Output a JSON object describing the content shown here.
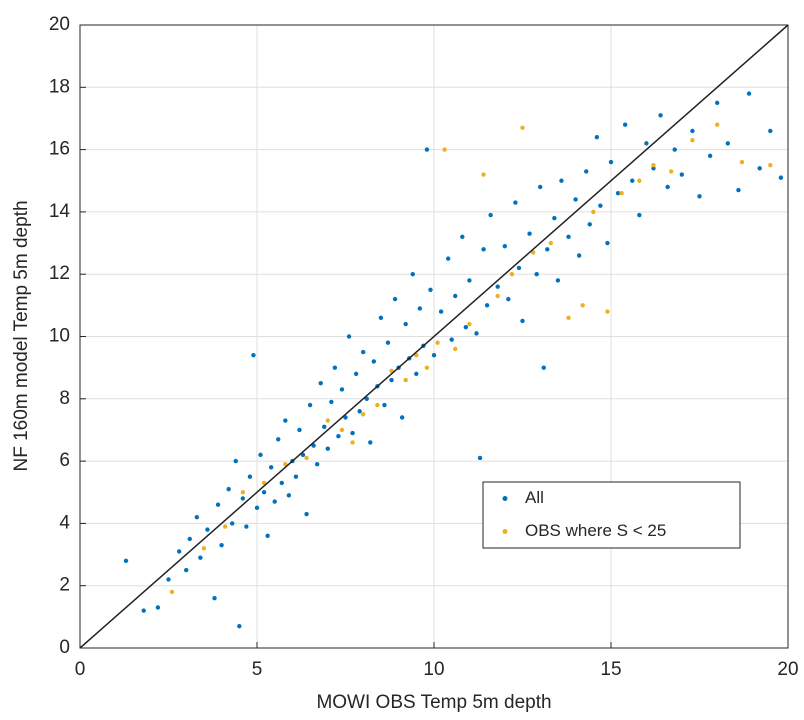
{
  "chart_data": {
    "type": "scatter",
    "xlabel": "MOWI OBS Temp 5m depth",
    "ylabel": "NF 160m model Temp 5m depth",
    "xlim": [
      0,
      20
    ],
    "ylim": [
      0,
      20
    ],
    "xticks": [
      0,
      5,
      10,
      15,
      20
    ],
    "yticks": [
      0,
      2,
      4,
      6,
      8,
      10,
      12,
      14,
      16,
      18,
      20
    ],
    "grid": true,
    "identity_line": true,
    "legend": "lower right",
    "series": [
      {
        "name": "All",
        "color": "#0072bd",
        "x": [
          1.3,
          1.8,
          2.2,
          2.5,
          2.8,
          3.0,
          3.1,
          3.3,
          3.4,
          3.6,
          3.8,
          3.9,
          4.0,
          4.2,
          4.3,
          4.4,
          4.5,
          4.6,
          4.7,
          4.8,
          4.9,
          5.0,
          5.1,
          5.2,
          5.3,
          5.4,
          5.5,
          5.6,
          5.7,
          5.8,
          5.9,
          6.0,
          6.1,
          6.2,
          6.3,
          6.4,
          6.5,
          6.6,
          6.7,
          6.8,
          6.9,
          7.0,
          7.1,
          7.2,
          7.3,
          7.4,
          7.5,
          7.6,
          7.7,
          7.8,
          7.9,
          8.0,
          8.1,
          8.2,
          8.3,
          8.4,
          8.5,
          8.6,
          8.7,
          8.8,
          8.9,
          9.0,
          9.1,
          9.2,
          9.3,
          9.4,
          9.5,
          9.6,
          9.7,
          9.8,
          9.9,
          10.0,
          10.2,
          10.4,
          10.5,
          10.6,
          10.8,
          10.9,
          11.0,
          11.2,
          11.3,
          11.4,
          11.5,
          11.6,
          11.8,
          12.0,
          12.1,
          12.3,
          12.4,
          12.5,
          12.7,
          12.9,
          13.0,
          13.1,
          13.2,
          13.4,
          13.5,
          13.6,
          13.8,
          14.0,
          14.1,
          14.3,
          14.4,
          14.6,
          14.7,
          14.9,
          15.0,
          15.2,
          15.4,
          15.6,
          15.8,
          16.0,
          16.2,
          16.4,
          16.6,
          16.8,
          17.0,
          17.3,
          17.5,
          17.8,
          18.0,
          18.3,
          18.6,
          18.9,
          19.2,
          19.5,
          19.8
        ],
        "y": [
          2.8,
          1.2,
          1.3,
          2.2,
          3.1,
          2.5,
          3.5,
          4.2,
          2.9,
          3.8,
          1.6,
          4.6,
          3.3,
          5.1,
          4.0,
          6.0,
          0.7,
          4.8,
          3.9,
          5.5,
          9.4,
          4.5,
          6.2,
          5.0,
          3.6,
          5.8,
          4.7,
          6.7,
          5.3,
          7.3,
          4.9,
          6.0,
          5.5,
          7.0,
          6.2,
          4.3,
          7.8,
          6.5,
          5.9,
          8.5,
          7.1,
          6.4,
          7.9,
          9.0,
          6.8,
          8.3,
          7.4,
          10.0,
          6.9,
          8.8,
          7.6,
          9.5,
          8.0,
          6.6,
          9.2,
          8.4,
          10.6,
          7.8,
          9.8,
          8.6,
          11.2,
          9.0,
          7.4,
          10.4,
          9.3,
          12.0,
          8.8,
          10.9,
          9.7,
          16.0,
          11.5,
          9.4,
          10.8,
          12.5,
          9.9,
          11.3,
          13.2,
          10.3,
          11.8,
          10.1,
          6.1,
          12.8,
          11.0,
          13.9,
          11.6,
          12.9,
          11.2,
          14.3,
          12.2,
          10.5,
          13.3,
          12.0,
          14.8,
          9.0,
          12.8,
          13.8,
          11.8,
          15.0,
          13.2,
          14.4,
          12.6,
          15.3,
          13.6,
          16.4,
          14.2,
          13.0,
          15.6,
          14.6,
          16.8,
          15.0,
          13.9,
          16.2,
          15.4,
          17.1,
          14.8,
          16.0,
          15.2,
          16.6,
          14.5,
          15.8,
          17.5,
          16.2,
          14.7,
          17.8,
          15.4,
          16.6,
          15.1
        ]
      },
      {
        "name": "OBS where S < 25",
        "color": "#edb120",
        "x": [
          2.6,
          3.5,
          4.1,
          4.6,
          5.2,
          5.8,
          6.4,
          7.0,
          7.4,
          7.7,
          8.0,
          8.4,
          8.8,
          9.2,
          9.5,
          9.8,
          10.1,
          10.3,
          10.6,
          11.0,
          11.4,
          11.8,
          12.2,
          12.5,
          12.8,
          13.3,
          13.8,
          14.2,
          14.5,
          14.9,
          15.3,
          15.8,
          16.2,
          16.7,
          17.3,
          18.0,
          18.7,
          19.5
        ],
        "y": [
          1.8,
          3.2,
          3.9,
          5.0,
          5.3,
          5.9,
          6.1,
          7.3,
          7.0,
          6.6,
          7.5,
          7.8,
          8.9,
          8.6,
          9.4,
          9.0,
          9.8,
          16.0,
          9.6,
          10.4,
          15.2,
          11.3,
          12.0,
          16.7,
          12.7,
          13.0,
          10.6,
          11.0,
          14.0,
          10.8,
          14.6,
          15.0,
          15.5,
          15.3,
          16.3,
          16.8,
          15.6,
          15.5
        ]
      }
    ]
  }
}
